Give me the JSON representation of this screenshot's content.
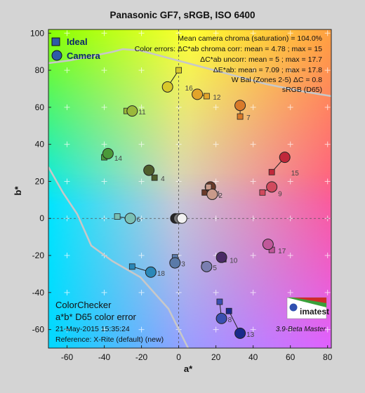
{
  "chart_data": {
    "type": "scatter",
    "title": "Panasonic GF7, sRGB, ISO 6400",
    "xlabel": "a*",
    "ylabel": "b*",
    "xlim": [
      -70,
      82
    ],
    "ylim": [
      -70,
      102
    ],
    "xticks": [
      -60,
      -40,
      -20,
      0,
      20,
      40,
      60,
      80
    ],
    "yticks": [
      100,
      80,
      60,
      40,
      20,
      0,
      -20,
      -40,
      -60
    ],
    "legend": {
      "placement": "top-left",
      "entries": [
        {
          "name": "Ideal",
          "marker": "square",
          "color": "#2e5aa8"
        },
        {
          "name": "Camera",
          "marker": "circle",
          "color": "#2e5aa8"
        }
      ]
    },
    "info_lines": [
      "Mean camera chroma (saturation) = 104.0%",
      "Color errors: ΔC*ab chroma corr:  mean = 4.78 ;  max = 15",
      "ΔC*ab uncorr:  mean = 5 ;  max = 17.7",
      "ΔE*ab:  mean = 7.09 ;  max = 17.8",
      "W Bal (Zones 2-5) ΔC = 0.8",
      "sRGB (D65)"
    ],
    "bottom_left": {
      "line1": "ColorChecker",
      "line2": "a*b* D65 color error",
      "line3": "21-May-2015 15:35:24",
      "line4": "Reference: X-Rite (default) (new)"
    },
    "logo": "imatest",
    "version": "3.9-Beta  Master",
    "patches": [
      {
        "label": "1",
        "ideal": [
          14,
          14
        ],
        "camera": [
          17,
          17
        ],
        "color": "#6a3b2a"
      },
      {
        "label": "2",
        "ideal": [
          16,
          17
        ],
        "camera": [
          18,
          13
        ],
        "color": "#c89a8a"
      },
      {
        "label": "3",
        "ideal": [
          -2,
          -21
        ],
        "camera": [
          -2,
          -24
        ],
        "color": "#5a7aa8"
      },
      {
        "label": "4",
        "ideal": [
          -13,
          22
        ],
        "camera": [
          -16,
          26
        ],
        "color": "#4f5e2c"
      },
      {
        "label": "5",
        "ideal": [
          14,
          -25
        ],
        "camera": [
          15,
          -26
        ],
        "color": "#7a7eb0"
      },
      {
        "label": "6",
        "ideal": [
          -33,
          1
        ],
        "camera": [
          -26,
          0
        ],
        "color": "#7ac0b4"
      },
      {
        "label": "7",
        "ideal": [
          33,
          55
        ],
        "camera": [
          33,
          61
        ],
        "color": "#d97a2a"
      },
      {
        "label": "8",
        "ideal": [
          22,
          -45
        ],
        "camera": [
          23,
          -54
        ],
        "color": "#3a4fb0"
      },
      {
        "label": "9",
        "ideal": [
          45,
          14
        ],
        "camera": [
          50,
          17
        ],
        "color": "#d04a5e"
      },
      {
        "label": "10",
        "ideal": [
          24,
          -22
        ],
        "camera": [
          23,
          -21
        ],
        "color": "#4a2a66"
      },
      {
        "label": "11",
        "ideal": [
          -28,
          58
        ],
        "camera": [
          -25,
          58
        ],
        "color": "#9ab83a"
      },
      {
        "label": "12",
        "ideal": [
          15,
          66
        ],
        "camera": [
          10,
          67
        ],
        "color": "#e3a42a"
      },
      {
        "label": "13",
        "ideal": [
          27,
          -50
        ],
        "camera": [
          33,
          -62
        ],
        "color": "#1a2a8a"
      },
      {
        "label": "14",
        "ideal": [
          -40,
          33
        ],
        "camera": [
          -38,
          35
        ],
        "color": "#4a9a3a"
      },
      {
        "label": "15",
        "ideal": [
          50,
          25
        ],
        "camera": [
          57,
          33
        ],
        "color": "#c0283a"
      },
      {
        "label": "16",
        "ideal": [
          0,
          80
        ],
        "camera": [
          -6,
          71
        ],
        "color": "#d8c82a"
      },
      {
        "label": "17",
        "ideal": [
          50,
          -17
        ],
        "camera": [
          48,
          -14
        ],
        "color": "#c0589a"
      },
      {
        "label": "18",
        "ideal": [
          -25,
          -26
        ],
        "camera": [
          -15,
          -29
        ],
        "color": "#2a88b8"
      }
    ],
    "neutrals": [
      {
        "camera": [
          -1,
          0
        ],
        "color": "#262626"
      },
      {
        "camera": [
          0,
          0
        ],
        "color": "#7a7a7a"
      },
      {
        "camera": [
          1,
          0
        ],
        "color": "#f2f2f2"
      }
    ]
  }
}
